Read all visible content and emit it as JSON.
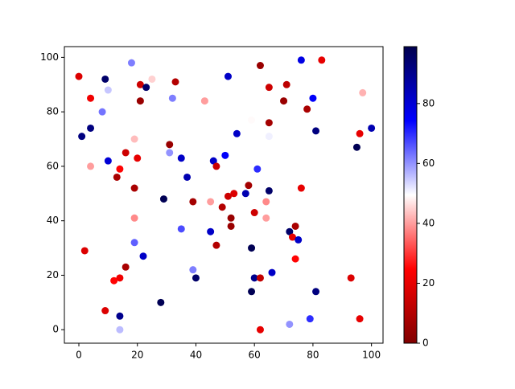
{
  "chart_data": {
    "type": "scatter",
    "x": [
      0,
      18,
      9,
      10,
      4,
      8,
      21,
      23,
      25,
      33,
      21,
      32,
      43,
      51,
      62,
      65,
      71,
      76,
      83,
      80,
      70,
      78,
      97,
      100,
      96,
      81,
      95,
      1,
      4,
      4,
      10,
      16,
      19,
      20,
      14,
      13,
      31,
      31,
      35,
      37,
      46,
      47,
      50,
      54,
      59,
      61,
      65,
      65,
      19,
      29,
      39,
      45,
      49,
      51,
      53,
      52,
      52,
      47,
      45,
      35,
      19,
      19,
      22,
      16,
      2,
      14,
      12,
      9,
      14,
      14,
      28,
      39,
      40,
      57,
      58,
      60,
      64,
      64,
      65,
      59,
      59,
      60,
      62,
      66,
      62,
      72,
      72,
      73,
      74,
      75,
      74,
      76,
      79,
      81,
      93,
      96
    ],
    "y": [
      93,
      98,
      92,
      88,
      85,
      80,
      90,
      89,
      92,
      91,
      84,
      85,
      84,
      93,
      97,
      89,
      90,
      99,
      99,
      85,
      84,
      81,
      87,
      74,
      72,
      73,
      67,
      71,
      74,
      60,
      62,
      65,
      70,
      63,
      59,
      56,
      68,
      65,
      63,
      56,
      62,
      60,
      64,
      72,
      77,
      59,
      71,
      76,
      52,
      48,
      47,
      47,
      45,
      49,
      50,
      41,
      38,
      31,
      36,
      37,
      41,
      32,
      27,
      23,
      29,
      19,
      18,
      7,
      5,
      0,
      10,
      22,
      19,
      50,
      53,
      43,
      47,
      41,
      51,
      30,
      14,
      19,
      19,
      21,
      0,
      2,
      36,
      34,
      38,
      33,
      26,
      52,
      4,
      14,
      19,
      4
    ],
    "c": [
      18,
      62,
      95,
      55,
      22,
      63,
      15,
      95,
      45,
      10,
      5,
      62,
      40,
      82,
      5,
      15,
      12,
      78,
      20,
      75,
      5,
      8,
      42,
      85,
      20,
      92,
      98,
      92,
      92,
      40,
      80,
      15,
      43,
      20,
      25,
      8,
      5,
      60,
      82,
      85,
      82,
      14,
      75,
      82,
      49,
      70,
      51,
      7,
      8,
      98,
      7,
      40,
      10,
      15,
      18,
      5,
      5,
      10,
      82,
      67,
      38,
      65,
      82,
      8,
      18,
      22,
      25,
      18,
      90,
      56,
      98,
      62,
      95,
      85,
      7,
      15,
      38,
      40,
      95,
      98,
      98,
      90,
      13,
      82,
      20,
      60,
      95,
      20,
      8,
      82,
      25,
      20,
      70,
      92,
      18,
      20
    ],
    "xlim": [
      -4.95,
      103.95
    ],
    "ylim": [
      -4.95,
      103.95
    ],
    "xticks": [
      0,
      20,
      40,
      60,
      80,
      100
    ],
    "yticks": [
      0,
      20,
      40,
      60,
      80,
      100
    ],
    "colormap": "seismic_r",
    "clim": [
      0,
      99
    ],
    "cticks": [
      0,
      20,
      40,
      60,
      80
    ]
  }
}
